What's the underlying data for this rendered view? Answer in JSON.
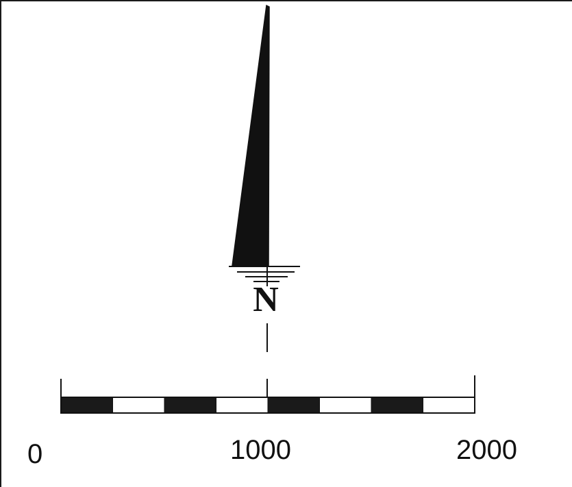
{
  "north_arrow": {
    "letter": "N",
    "icon": "north-arrow-icon"
  },
  "scale_bar": {
    "labels": [
      "0",
      "1000",
      "2000"
    ],
    "segments": 8,
    "colors": {
      "dark": "#1a1a1a",
      "light": "#ffffff",
      "stroke": "#111111"
    }
  }
}
